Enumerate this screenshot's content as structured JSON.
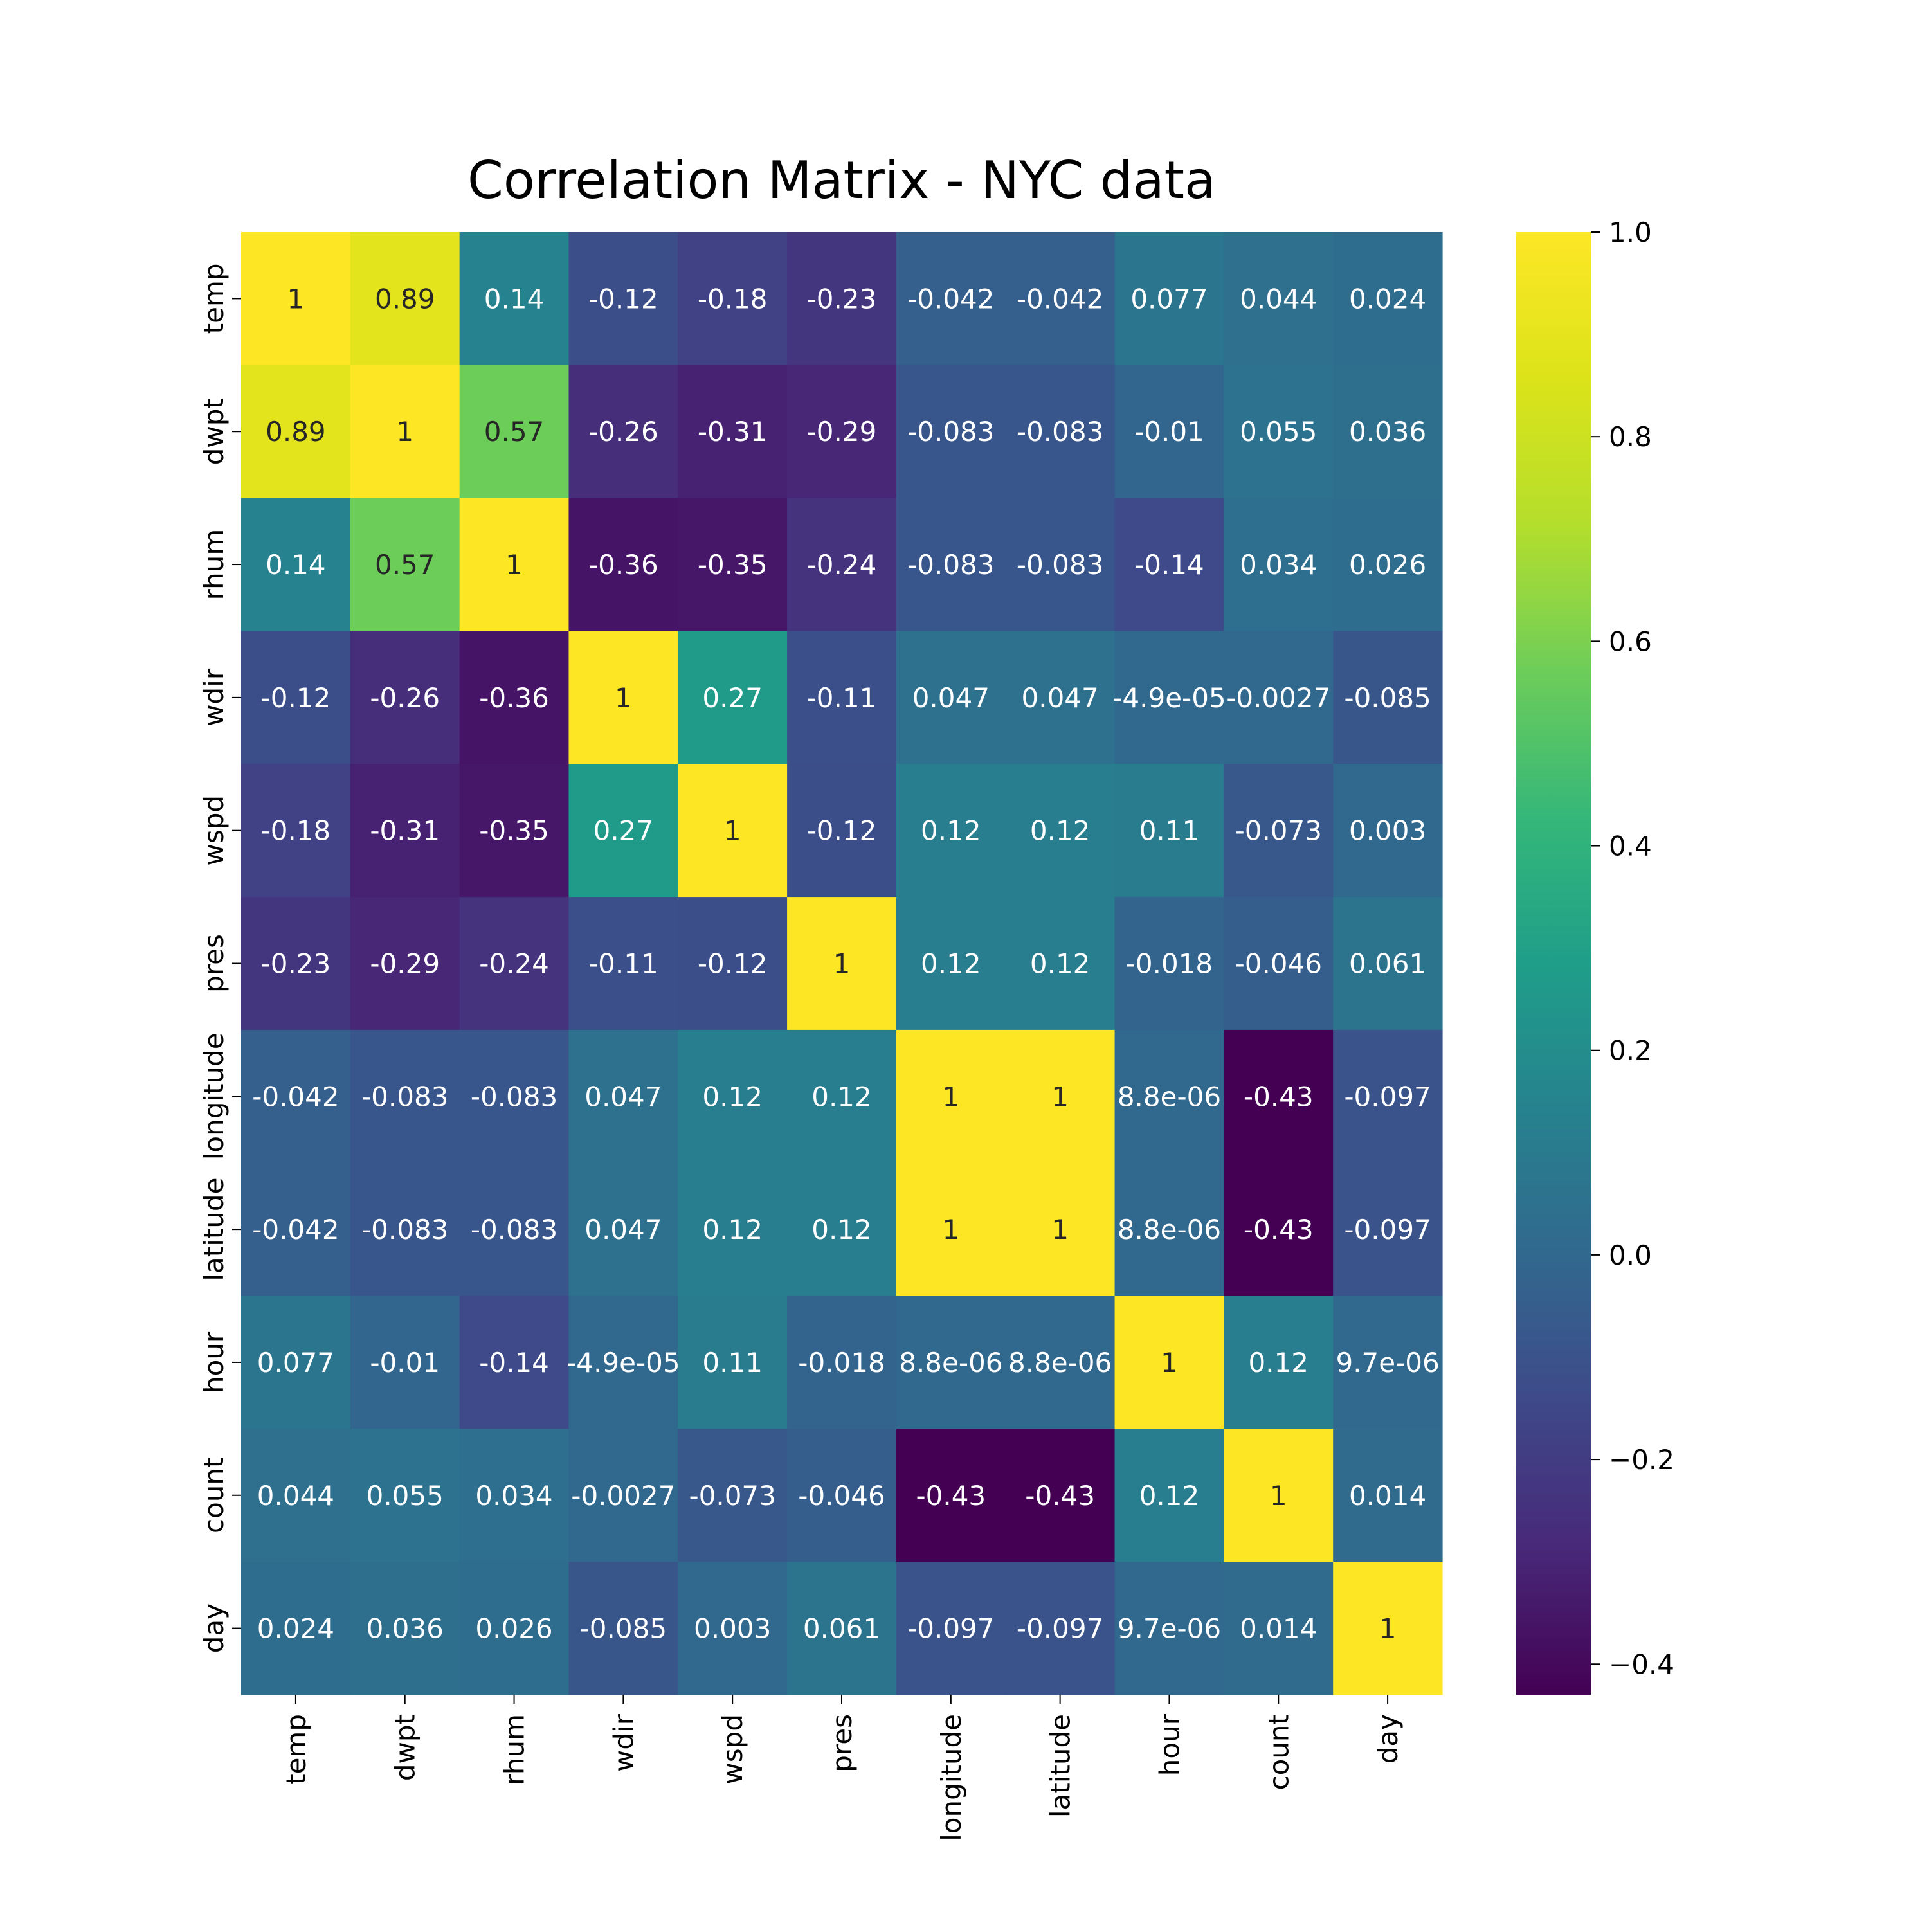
{
  "chart_data": {
    "type": "heatmap",
    "title": "Correlation Matrix - NYC data",
    "xlabel": "",
    "ylabel": "",
    "colormap": "viridis",
    "vmin": -0.43,
    "vmax": 1.0,
    "colorbar_ticks": [
      "1.0",
      "0.8",
      "0.6",
      "0.4",
      "0.2",
      "0.0",
      "−0.2",
      "−0.4"
    ],
    "colorbar_tick_values": [
      1.0,
      0.8,
      0.6,
      0.4,
      0.2,
      0.0,
      -0.2,
      -0.4
    ],
    "x_categories": [
      "temp",
      "dwpt",
      "rhum",
      "wdir",
      "wspd",
      "pres",
      "longitude",
      "latitude",
      "hour",
      "count",
      "day"
    ],
    "y_categories": [
      "temp",
      "dwpt",
      "rhum",
      "wdir",
      "wspd",
      "pres",
      "longitude",
      "latitude",
      "hour",
      "count",
      "day"
    ],
    "values": [
      [
        1,
        0.89,
        0.14,
        -0.12,
        -0.18,
        -0.23,
        -0.042,
        -0.042,
        0.077,
        0.044,
        0.024
      ],
      [
        0.89,
        1,
        0.57,
        -0.26,
        -0.31,
        -0.29,
        -0.083,
        -0.083,
        -0.01,
        0.055,
        0.036
      ],
      [
        0.14,
        0.57,
        1,
        -0.36,
        -0.35,
        -0.24,
        -0.083,
        -0.083,
        -0.14,
        0.034,
        0.026
      ],
      [
        -0.12,
        -0.26,
        -0.36,
        1,
        0.27,
        -0.11,
        0.047,
        0.047,
        -4.9e-05,
        -0.0027,
        -0.085
      ],
      [
        -0.18,
        -0.31,
        -0.35,
        0.27,
        1,
        -0.12,
        0.12,
        0.12,
        0.11,
        -0.073,
        0.003
      ],
      [
        -0.23,
        -0.29,
        -0.24,
        -0.11,
        -0.12,
        1,
        0.12,
        0.12,
        -0.018,
        -0.046,
        0.061
      ],
      [
        -0.042,
        -0.083,
        -0.083,
        0.047,
        0.12,
        0.12,
        1,
        1,
        8.8e-06,
        -0.43,
        -0.097
      ],
      [
        -0.042,
        -0.083,
        -0.083,
        0.047,
        0.12,
        0.12,
        1,
        1,
        8.8e-06,
        -0.43,
        -0.097
      ],
      [
        0.077,
        -0.01,
        -0.14,
        -4.9e-05,
        0.11,
        -0.018,
        8.8e-06,
        8.8e-06,
        1,
        0.12,
        9.7e-06
      ],
      [
        0.044,
        0.055,
        0.034,
        -0.0027,
        -0.073,
        -0.046,
        -0.43,
        -0.43,
        0.12,
        1,
        0.014
      ],
      [
        0.024,
        0.036,
        0.026,
        -0.085,
        0.003,
        0.061,
        -0.097,
        -0.097,
        9.7e-06,
        0.014,
        1
      ]
    ],
    "labels": [
      [
        "1",
        "0.89",
        "0.14",
        "-0.12",
        "-0.18",
        "-0.23",
        "-0.042",
        "-0.042",
        "0.077",
        "0.044",
        "0.024"
      ],
      [
        "0.89",
        "1",
        "0.57",
        "-0.26",
        "-0.31",
        "-0.29",
        "-0.083",
        "-0.083",
        "-0.01",
        "0.055",
        "0.036"
      ],
      [
        "0.14",
        "0.57",
        "1",
        "-0.36",
        "-0.35",
        "-0.24",
        "-0.083",
        "-0.083",
        "-0.14",
        "0.034",
        "0.026"
      ],
      [
        "-0.12",
        "-0.26",
        "-0.36",
        "1",
        "0.27",
        "-0.11",
        "0.047",
        "0.047",
        "-4.9e-05",
        "-0.0027",
        "-0.085"
      ],
      [
        "-0.18",
        "-0.31",
        "-0.35",
        "0.27",
        "1",
        "-0.12",
        "0.12",
        "0.12",
        "0.11",
        "-0.073",
        "0.003"
      ],
      [
        "-0.23",
        "-0.29",
        "-0.24",
        "-0.11",
        "-0.12",
        "1",
        "0.12",
        "0.12",
        "-0.018",
        "-0.046",
        "0.061"
      ],
      [
        "-0.042",
        "-0.083",
        "-0.083",
        "0.047",
        "0.12",
        "0.12",
        "1",
        "1",
        "8.8e-06",
        "-0.43",
        "-0.097"
      ],
      [
        "-0.042",
        "-0.083",
        "-0.083",
        "0.047",
        "0.12",
        "0.12",
        "1",
        "1",
        "8.8e-06",
        "-0.43",
        "-0.097"
      ],
      [
        "0.077",
        "-0.01",
        "-0.14",
        "-4.9e-05",
        "0.11",
        "-0.018",
        "8.8e-06",
        "8.8e-06",
        "1",
        "0.12",
        "9.7e-06"
      ],
      [
        "0.044",
        "0.055",
        "0.034",
        "-0.0027",
        "-0.073",
        "-0.046",
        "-0.43",
        "-0.43",
        "0.12",
        "1",
        "0.014"
      ],
      [
        "0.024",
        "0.036",
        "0.026",
        "-0.085",
        "0.003",
        "0.061",
        "-0.097",
        "-0.097",
        "9.7e-06",
        "0.014",
        "1"
      ]
    ],
    "grid": false,
    "legend": "colorbar-right"
  }
}
